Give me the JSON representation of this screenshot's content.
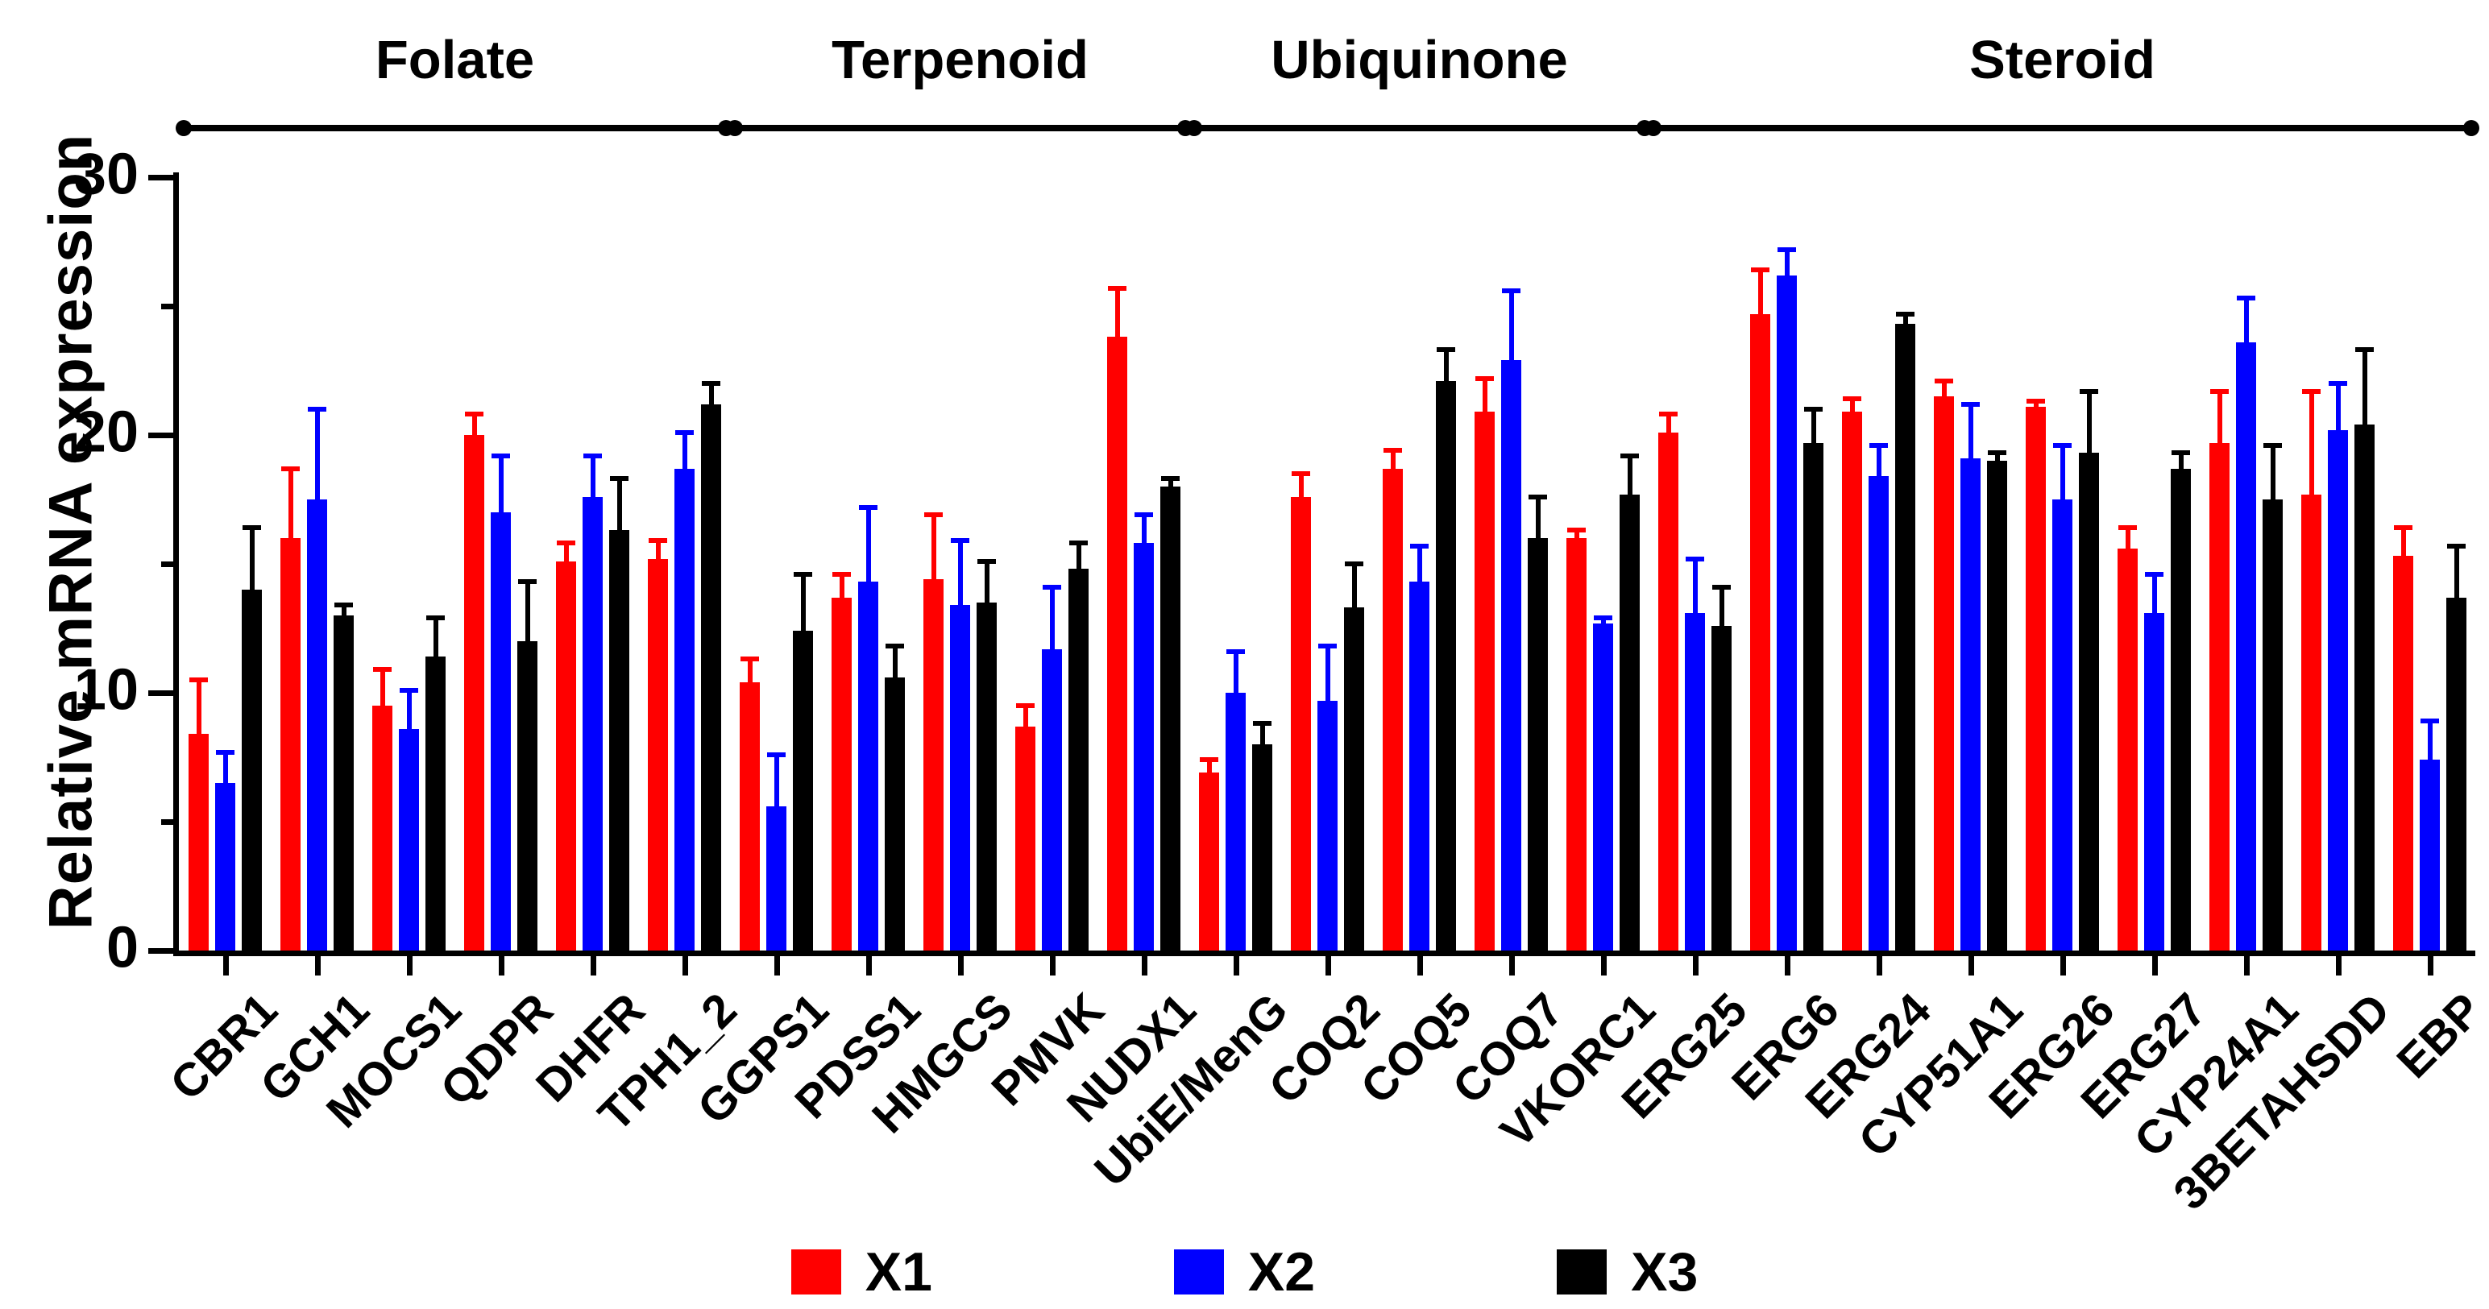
{
  "chart_data": {
    "type": "bar",
    "title": "",
    "ylabel": "Relative mRNA expression",
    "xlabel": "",
    "ylim": [
      0,
      30
    ],
    "yticks": [
      0,
      10,
      20,
      30
    ],
    "yminorticks": [
      5,
      15,
      25
    ],
    "grid": false,
    "legend_position": "bottom",
    "error_bars": "upper whisker with cap, colored per series",
    "categories": [
      "CBR1",
      "GCH1",
      "MOCS1",
      "QDPR",
      "DHFR",
      "TPH1_2",
      "GGPS1",
      "PDSS1",
      "HMGCS",
      "PMVK",
      "NUDX1",
      "UbiE/MenG",
      "COQ2",
      "COQ5",
      "COQ7",
      "VKORC1",
      "ERG25",
      "ERG6",
      "ERG24",
      "CYP51A1",
      "ERG26",
      "ERG27",
      "CYP24A1",
      "3BETAHSDD",
      "EBP"
    ],
    "groups": [
      {
        "label": "Folate",
        "start": 0,
        "end": 5
      },
      {
        "label": "Terpenoid",
        "start": 6,
        "end": 10
      },
      {
        "label": "Ubiquinone",
        "start": 11,
        "end": 15
      },
      {
        "label": "Steroid",
        "start": 16,
        "end": 24
      }
    ],
    "series": [
      {
        "name": "X1",
        "color": "#ff0000",
        "values": [
          8.4,
          16.0,
          9.5,
          20.0,
          15.1,
          15.2,
          10.4,
          13.7,
          14.4,
          8.7,
          23.8,
          6.9,
          17.6,
          18.7,
          20.9,
          16.0,
          20.1,
          24.7,
          20.9,
          21.5,
          21.1,
          15.6,
          19.7,
          17.7,
          15.3
        ],
        "errors": [
          2.1,
          2.7,
          1.4,
          0.8,
          0.7,
          0.7,
          0.9,
          0.9,
          2.5,
          0.8,
          1.9,
          0.5,
          0.9,
          0.7,
          1.3,
          0.3,
          0.7,
          1.7,
          0.5,
          0.6,
          0.2,
          0.8,
          2.0,
          4.0,
          1.1
        ]
      },
      {
        "name": "X2",
        "color": "#0000ff",
        "values": [
          6.5,
          17.5,
          8.6,
          17.0,
          17.6,
          18.7,
          5.6,
          14.3,
          13.4,
          11.7,
          15.8,
          10.0,
          9.7,
          14.3,
          22.9,
          12.7,
          13.1,
          26.2,
          18.4,
          19.1,
          17.5,
          13.1,
          23.6,
          20.2,
          7.4
        ],
        "errors": [
          1.2,
          3.5,
          1.5,
          2.2,
          1.6,
          1.4,
          2.0,
          2.9,
          2.5,
          2.4,
          1.1,
          1.6,
          2.1,
          1.4,
          2.7,
          0.2,
          2.1,
          1.0,
          1.2,
          2.1,
          2.1,
          1.5,
          1.7,
          1.8,
          1.5
        ]
      },
      {
        "name": "X3",
        "color": "#000000",
        "values": [
          14.0,
          13.0,
          11.4,
          12.0,
          16.3,
          21.2,
          12.4,
          10.6,
          13.5,
          14.8,
          18.0,
          8.0,
          13.3,
          22.1,
          16.0,
          17.7,
          12.6,
          19.7,
          24.3,
          19.0,
          19.3,
          18.7,
          17.5,
          20.4,
          13.7
        ],
        "errors": [
          2.4,
          0.4,
          1.5,
          2.3,
          2.0,
          0.8,
          2.2,
          1.2,
          1.6,
          1.0,
          0.3,
          0.8,
          1.7,
          1.2,
          1.6,
          1.5,
          1.5,
          1.3,
          0.4,
          0.3,
          2.4,
          0.6,
          2.1,
          2.9,
          2.0
        ]
      }
    ]
  }
}
